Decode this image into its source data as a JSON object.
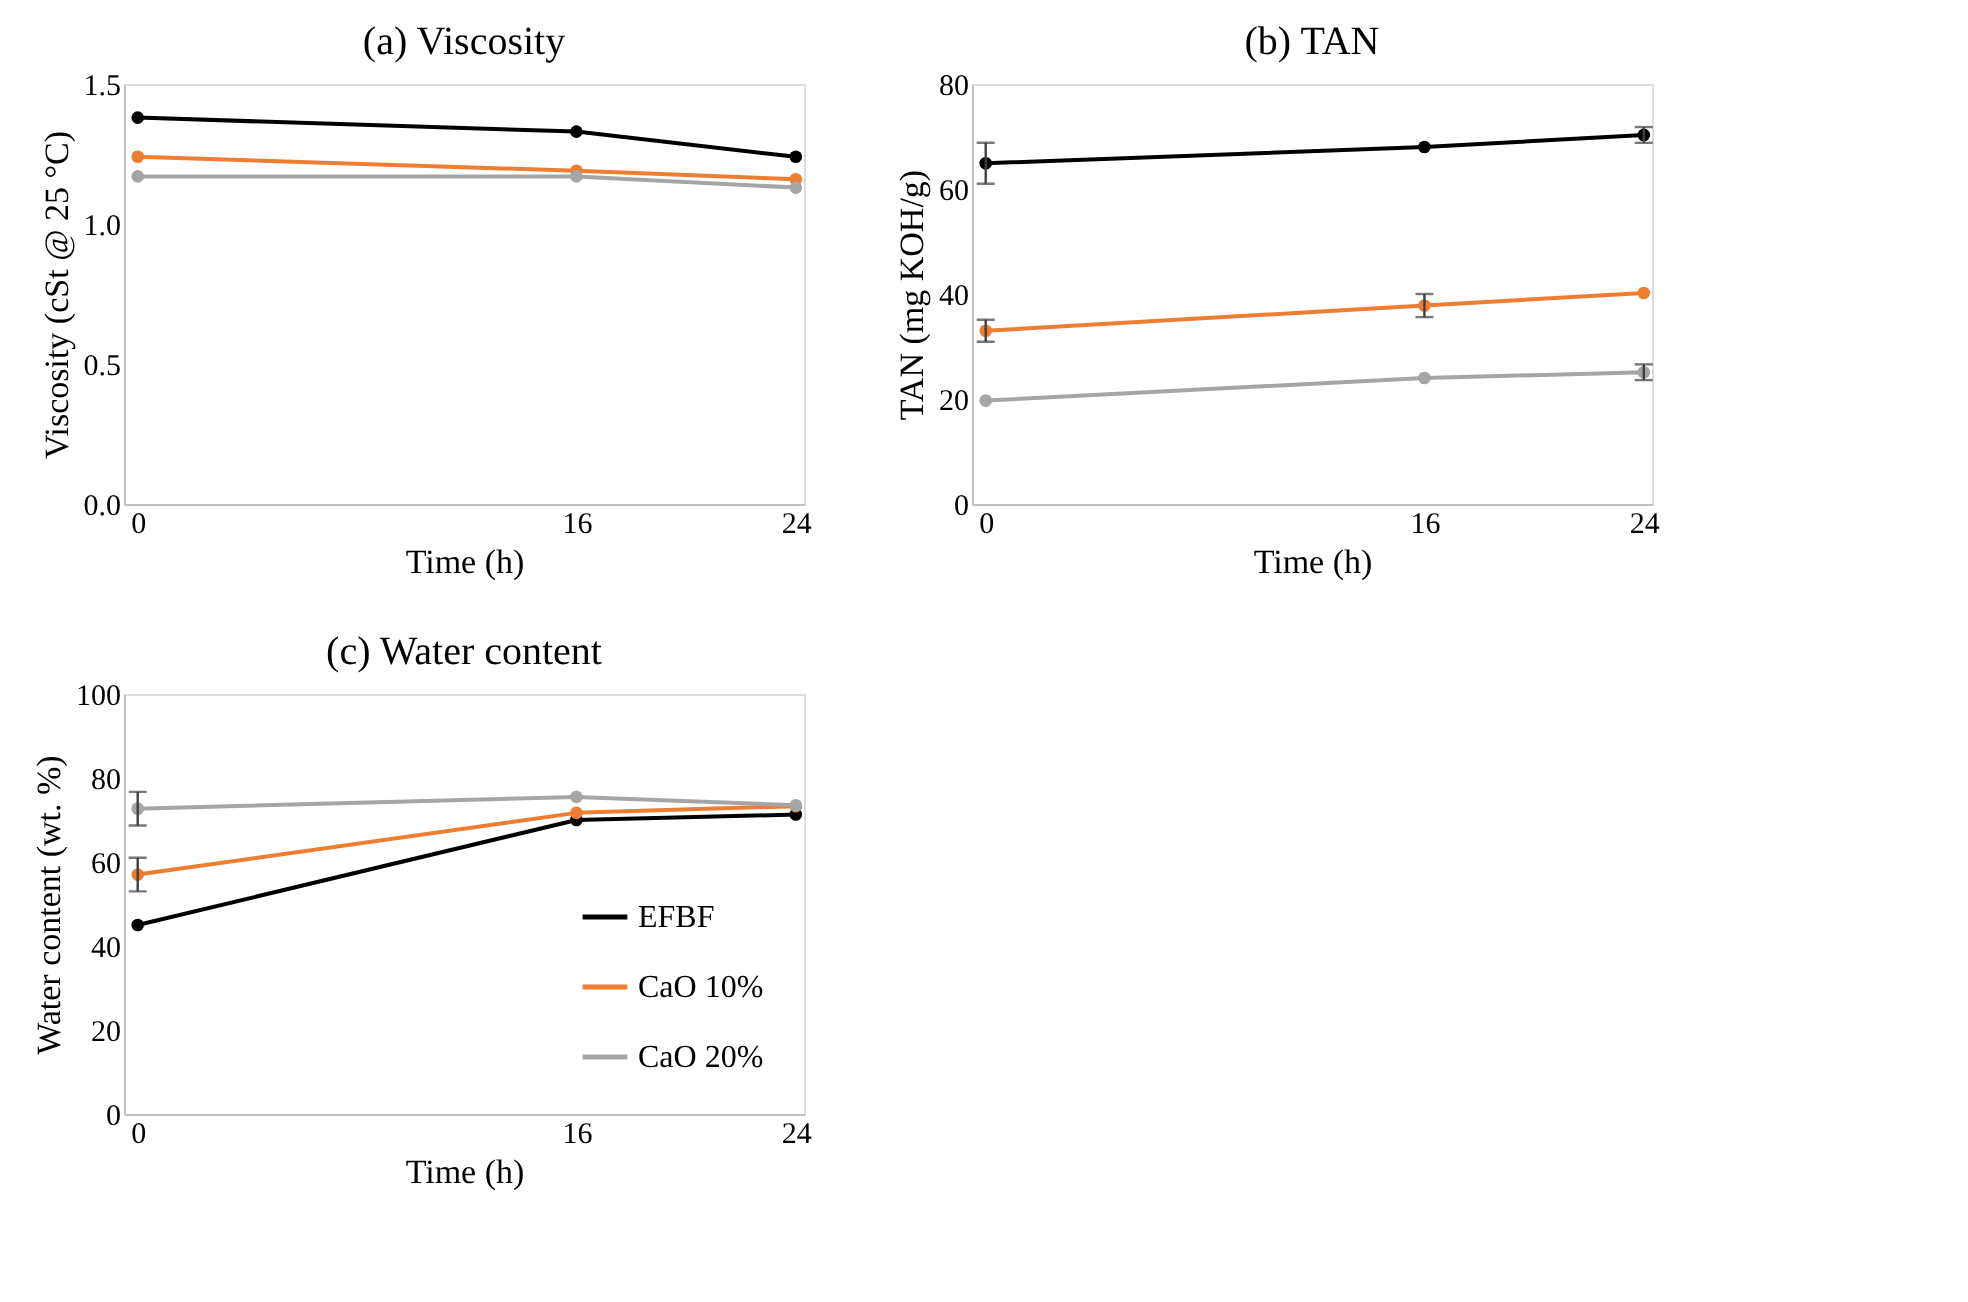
{
  "chart_data": [
    {
      "type": "line",
      "title": "(a) Viscosity",
      "xlabel": "Time (h)",
      "ylabel": "Viscosity (cSt @ 25 °C)",
      "x": [
        0,
        16,
        24
      ],
      "xlim": [
        -0.5,
        24.3
      ],
      "xticks": [
        0,
        16,
        24
      ],
      "ylim": [
        0,
        1.5
      ],
      "yticks": [
        {
          "value": 0,
          "label": "0.0"
        },
        {
          "value": 0.5,
          "label": "0.5"
        },
        {
          "value": 1,
          "label": "1.0"
        },
        {
          "value": 1.5,
          "label": "1.5"
        }
      ],
      "grid": false,
      "legend": false,
      "marker": "circle",
      "line_style": "solid",
      "series": [
        {
          "color": "#000000",
          "values": [
            1.38,
            1.33,
            1.24
          ]
        },
        {
          "color": "#ed7d31",
          "values": [
            1.24,
            1.19,
            1.16
          ]
        },
        {
          "color": "#a5a5a5",
          "values": [
            1.17,
            1.17,
            1.13
          ]
        }
      ]
    },
    {
      "type": "line",
      "title": "(b) TAN",
      "xlabel": "Time (h)",
      "ylabel": "TAN (mg KOH/g)",
      "x": [
        0,
        16,
        24
      ],
      "xlim": [
        -0.5,
        24.3
      ],
      "xticks": [
        0,
        16,
        24
      ],
      "ylim": [
        0,
        80
      ],
      "yticks": [
        0,
        20,
        40,
        60,
        80
      ],
      "grid": false,
      "legend": false,
      "marker": "circle",
      "line_style": "solid",
      "series": [
        {
          "color": "#000000",
          "values": [
            64.9,
            68.0,
            70.3
          ],
          "errors": [
            3.9,
            null,
            1.5
          ]
        },
        {
          "color": "#ed7d31",
          "values": [
            33.0,
            37.8,
            40.2
          ],
          "errors": [
            2.1,
            2.2,
            null
          ]
        },
        {
          "color": "#a5a5a5",
          "values": [
            19.7,
            24.0,
            25.1
          ],
          "errors": [
            null,
            null,
            1.5
          ]
        }
      ]
    },
    {
      "type": "line",
      "title": "(c) Water content",
      "xlabel": "Time (h)",
      "ylabel": "Water content (wt. %)",
      "x": [
        0,
        16,
        24
      ],
      "xlim": [
        -0.5,
        24.3
      ],
      "xticks": [
        0,
        16,
        24
      ],
      "ylim": [
        0,
        100
      ],
      "yticks": [
        0,
        20,
        40,
        60,
        80,
        100
      ],
      "grid": false,
      "legend": "bottom right",
      "marker": "circle",
      "line_style": "solid",
      "series": [
        {
          "name": "EFBF",
          "color": "#000000",
          "values": [
            45.0,
            70.0,
            71.3
          ]
        },
        {
          "name": "CaO 10%",
          "color": "#ed7d31",
          "values": [
            57.0,
            71.7,
            73.3
          ],
          "errors": [
            4,
            null,
            null
          ]
        },
        {
          "name": "CaO 20%",
          "color": "#a5a5a5",
          "values": [
            72.7,
            75.5,
            73.5
          ],
          "errors": [
            4,
            null,
            null
          ]
        }
      ]
    }
  ]
}
